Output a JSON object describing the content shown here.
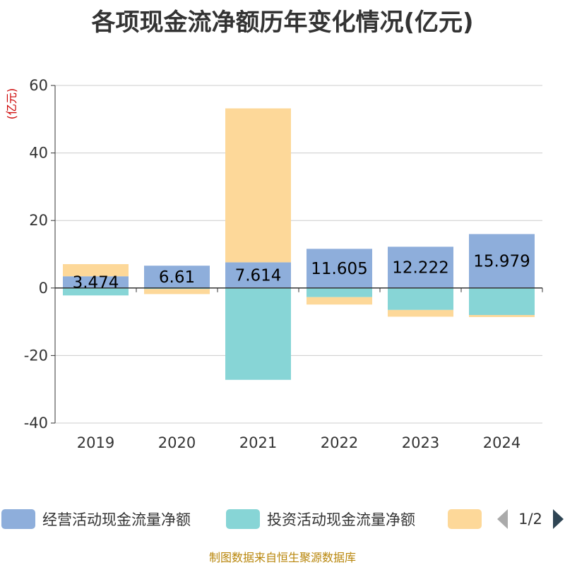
{
  "chart_data": {
    "type": "bar",
    "stacked": true,
    "title": "各项现金流净额历年变化情况(亿元)",
    "ylabel": "(亿元)",
    "xlabel": "",
    "ylim": [
      -40,
      60
    ],
    "yticks": [
      60,
      40,
      20,
      0,
      -20,
      -40
    ],
    "categories": [
      "2019",
      "2020",
      "2021",
      "2022",
      "2023",
      "2024"
    ],
    "grid": true,
    "series": [
      {
        "name": "经营活动现金流量净额",
        "color": "#8eaedb",
        "values": [
          3.474,
          6.61,
          7.614,
          11.605,
          12.222,
          15.979
        ],
        "show_labels": true
      },
      {
        "name": "投资活动现金流量净额",
        "color": "#87d5d6",
        "values": [
          -2.2,
          -0.3,
          -27.2,
          -2.7,
          -6.5,
          -8.0
        ],
        "show_labels": false
      },
      {
        "name": "",
        "color": "#fdd899",
        "values": [
          3.6,
          -1.5,
          45.6,
          -2.2,
          -2.0,
          -0.6
        ],
        "show_labels": false
      }
    ],
    "legend_position": "bottom",
    "legend_pager": "1/2",
    "source": "制图数据来自恒生聚源数据库"
  }
}
